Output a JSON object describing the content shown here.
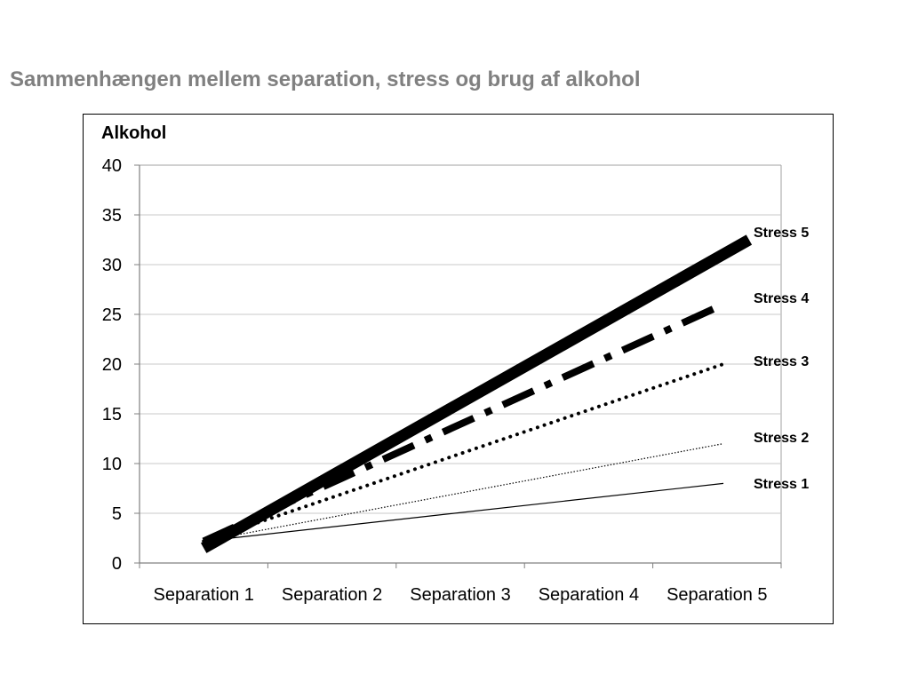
{
  "slide": {
    "title": "Sammenhængen mellem separation, stress og brug af alkohol"
  },
  "chart_data": {
    "type": "line",
    "title": "Sammenhængen mellem separation, stress og brug af alkohol",
    "ylabel": "Alkohol",
    "xlabel": "",
    "categories": [
      "Separation 1",
      "Separation 2",
      "Separation 3",
      "Separation 4",
      "Separation 5"
    ],
    "ylim": [
      0,
      40
    ],
    "yticks": [
      0,
      5,
      10,
      15,
      20,
      25,
      30,
      35,
      40
    ],
    "grid": true,
    "legend": "direct labels at right",
    "series": [
      {
        "name": "Stress 1",
        "start": [
          0.5,
          2.2
        ],
        "end": [
          4.55,
          8
        ],
        "style": "thin-solid"
      },
      {
        "name": "Stress 2",
        "start": [
          0.5,
          2.2
        ],
        "end": [
          4.55,
          12
        ],
        "style": "thin-dotted"
      },
      {
        "name": "Stress 3",
        "start": [
          0.5,
          2.2
        ],
        "end": [
          4.55,
          20
        ],
        "style": "thick-dotted"
      },
      {
        "name": "Stress 4",
        "start": [
          0.5,
          2.2
        ],
        "end": [
          4.55,
          26
        ],
        "style": "dash-dot"
      },
      {
        "name": "Stress 5",
        "start": [
          0.5,
          1.5
        ],
        "end": [
          4.75,
          32.5
        ],
        "style": "heavy-solid"
      }
    ]
  }
}
